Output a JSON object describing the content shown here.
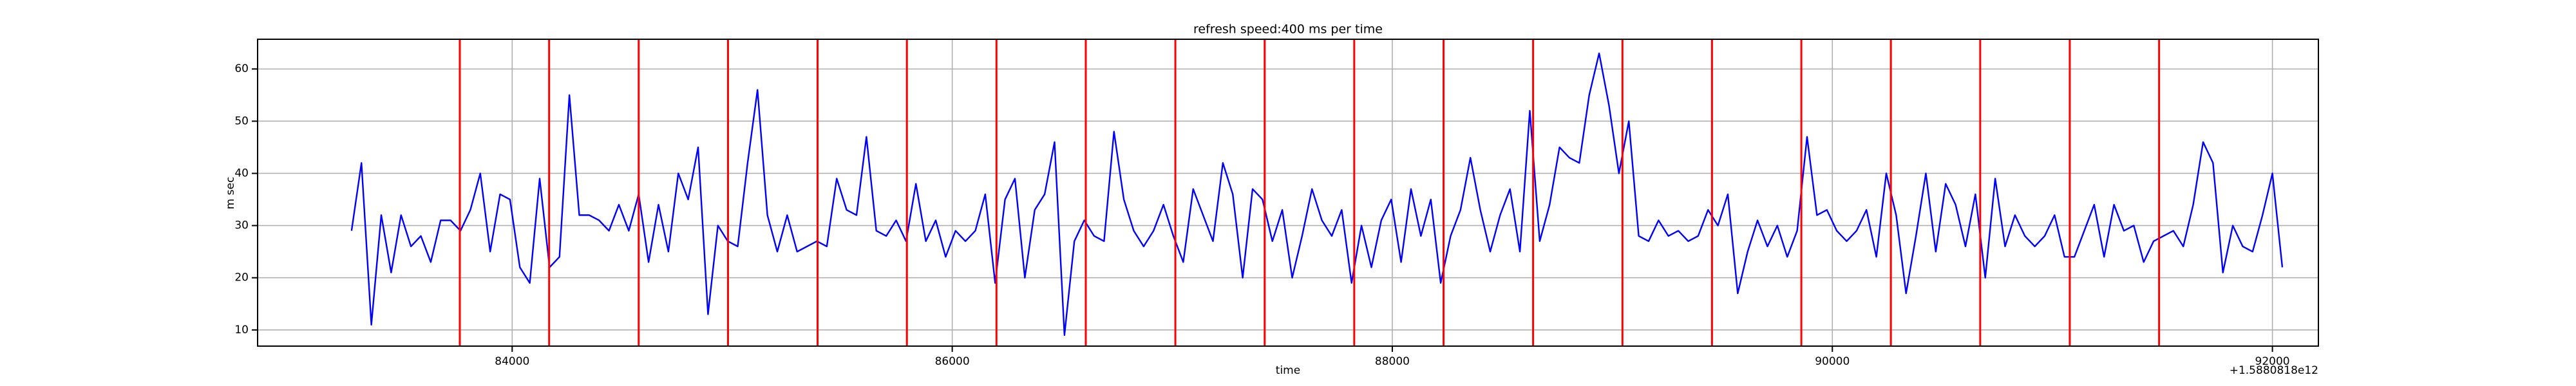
{
  "chart_data": {
    "type": "line",
    "title": "refresh speed:400 ms per time",
    "xlabel": "time",
    "ylabel": "m sec",
    "x_offset_label": "+1.5880818e12",
    "x": [
      83270,
      83315,
      83360,
      83405,
      83450,
      83495,
      83540,
      83585,
      83630,
      83675,
      83720,
      83765,
      83810,
      83855,
      83900,
      83945,
      83990,
      84035,
      84080,
      84125,
      84170,
      84215,
      84260,
      84305,
      84350,
      84395,
      84440,
      84485,
      84530,
      84575,
      84620,
      84665,
      84710,
      84755,
      84800,
      84845,
      84890,
      84935,
      84980,
      85025,
      85070,
      85115,
      85160,
      85205,
      85250,
      85295,
      85340,
      85385,
      85430,
      85475,
      85520,
      85565,
      85610,
      85655,
      85700,
      85745,
      85790,
      85835,
      85880,
      85925,
      85970,
      86015,
      86060,
      86105,
      86150,
      86195,
      86240,
      86285,
      86330,
      86375,
      86420,
      86465,
      86510,
      86555,
      86600,
      86645,
      86690,
      86735,
      86780,
      86825,
      86870,
      86915,
      86960,
      87005,
      87050,
      87095,
      87140,
      87185,
      87230,
      87275,
      87320,
      87365,
      87410,
      87455,
      87500,
      87545,
      87590,
      87635,
      87680,
      87725,
      87770,
      87815,
      87860,
      87905,
      87950,
      87995,
      88040,
      88085,
      88130,
      88175,
      88220,
      88265,
      88310,
      88355,
      88400,
      88445,
      88490,
      88535,
      88580,
      88625,
      88670,
      88715,
      88760,
      88805,
      88850,
      88895,
      88940,
      88985,
      89030,
      89075,
      89120,
      89165,
      89210,
      89255,
      89300,
      89345,
      89390,
      89435,
      89480,
      89525,
      89570,
      89615,
      89660,
      89705,
      89750,
      89795,
      89840,
      89885,
      89930,
      89975,
      90020,
      90065,
      90110,
      90155,
      90200,
      90245,
      90290,
      90335,
      90380,
      90425,
      90470,
      90515,
      90560,
      90605,
      90650,
      90695,
      90740,
      90785,
      90830,
      90875,
      90920,
      90965,
      91010,
      91055,
      91100,
      91145,
      91190,
      91235,
      91280,
      91325,
      91370,
      91415,
      91460,
      91505,
      91550,
      91595,
      91640,
      91685,
      91730,
      91775,
      91820,
      91865,
      91910,
      91955,
      92000,
      92045
    ],
    "values": [
      29,
      42,
      11,
      32,
      21,
      32,
      26,
      28,
      23,
      31,
      31,
      29,
      33,
      40,
      25,
      36,
      35,
      22,
      19,
      39,
      22,
      24,
      55,
      32,
      32,
      31,
      29,
      34,
      29,
      36,
      23,
      34,
      25,
      40,
      35,
      45,
      13,
      30,
      27,
      26,
      42,
      56,
      32,
      25,
      32,
      25,
      26,
      27,
      26,
      39,
      33,
      32,
      47,
      29,
      28,
      31,
      27,
      38,
      27,
      31,
      24,
      29,
      27,
      29,
      36,
      19,
      35,
      39,
      20,
      33,
      36,
      46,
      9,
      27,
      31,
      28,
      27,
      48,
      35,
      29,
      26,
      29,
      34,
      28,
      23,
      37,
      32,
      27,
      42,
      36,
      20,
      37,
      35,
      27,
      33,
      20,
      28,
      37,
      31,
      28,
      33,
      19,
      30,
      22,
      31,
      35,
      23,
      37,
      28,
      35,
      19,
      28,
      33,
      43,
      33,
      25,
      32,
      37,
      25,
      52,
      27,
      34,
      45,
      43,
      42,
      55,
      63,
      53,
      40,
      50,
      28,
      27,
      31,
      28,
      29,
      27,
      28,
      33,
      30,
      36,
      17,
      25,
      31,
      26,
      30,
      24,
      29,
      47,
      32,
      33,
      29,
      27,
      29,
      33,
      24,
      40,
      32,
      17,
      28,
      40,
      25,
      38,
      34,
      26,
      36,
      20,
      39,
      26,
      32,
      28,
      26,
      28,
      32,
      24,
      24,
      29,
      34,
      24,
      34,
      29,
      30,
      23,
      27,
      28,
      29,
      26,
      34,
      46,
      42,
      21,
      30,
      26,
      25,
      32,
      40,
      22
    ],
    "color": "#0000ff",
    "vlines": [
      83762,
      84168,
      84575,
      84981,
      85388,
      85794,
      86201,
      86607,
      87014,
      87420,
      87827,
      88233,
      88640,
      89046,
      89453,
      89859,
      90266,
      90672,
      91079,
      91485
    ],
    "vline_color": "#ff0000",
    "xlim": [
      82843,
      92209
    ],
    "ylim": [
      6.9,
      65.7
    ],
    "xticks": [
      84000,
      86000,
      88000,
      90000,
      92000
    ],
    "yticks": [
      10,
      20,
      30,
      40,
      50,
      60
    ],
    "grid": true
  }
}
